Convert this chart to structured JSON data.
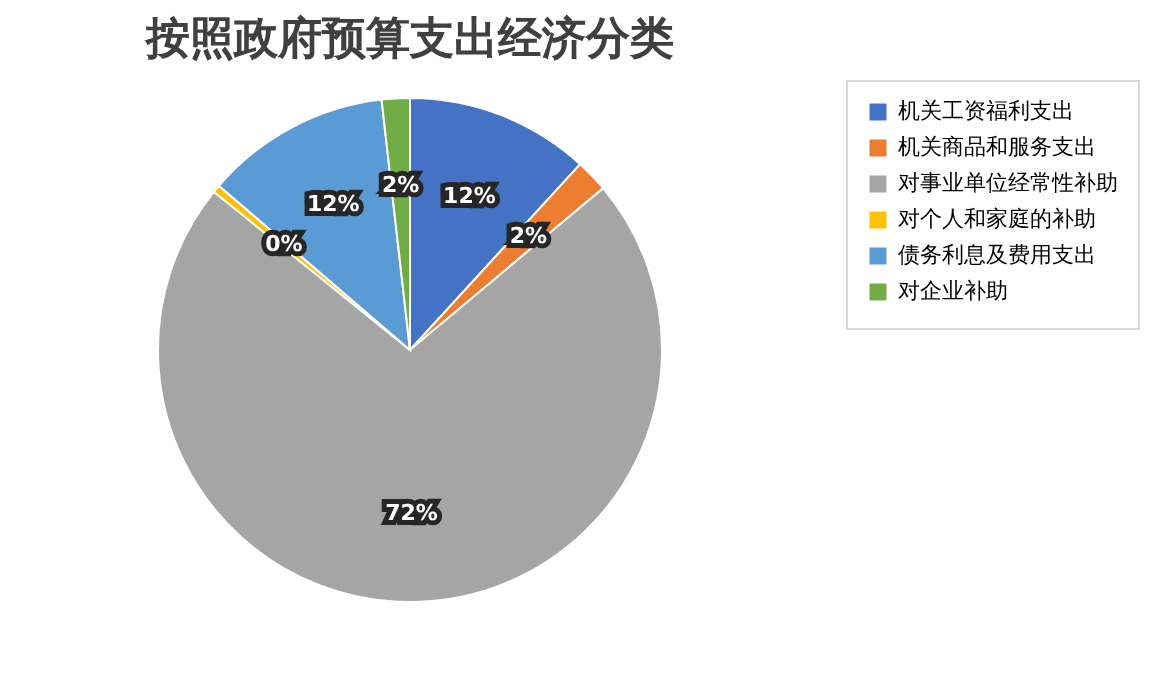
{
  "chart_data": {
    "type": "pie",
    "title": "按照政府预算支出经济分类",
    "categories": [
      "机关工资福利支出",
      "机关商品和服务支出",
      "对事业单位经常性补助",
      "对个人和家庭的补助",
      "债务利息及费用支出",
      "对企业补助"
    ],
    "values": [
      11.8,
      2.1,
      71.9,
      0.5,
      11.9,
      1.8
    ],
    "value_labels": [
      "12%",
      "2%",
      "72%",
      "0%",
      "12%",
      "2%"
    ],
    "colors": [
      "#4472c4",
      "#ed7d31",
      "#a5a5a5",
      "#ffc000",
      "#5b9bd5",
      "#70ad47"
    ],
    "legend": "right"
  }
}
